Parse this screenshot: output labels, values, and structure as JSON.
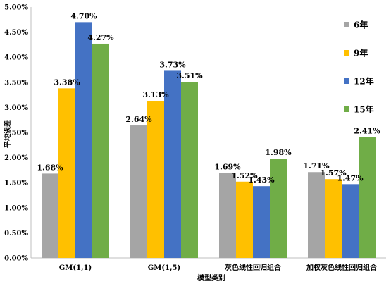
{
  "chart_data": {
    "type": "bar",
    "title": "",
    "xlabel": "模型类别",
    "ylabel": "平均误差",
    "categories": [
      "GM(1,1)",
      "GM(1,5)",
      "灰色线性回归组合",
      "加权灰色线性回归组合"
    ],
    "ylim": [
      0,
      0.05
    ],
    "y_ticks": [
      "0.00%",
      "0.50%",
      "1.00%",
      "1.50%",
      "2.00%",
      "2.50%",
      "3.00%",
      "3.50%",
      "4.00%",
      "4.50%",
      "5.00%"
    ],
    "grid": false,
    "legend_position": "right",
    "series": [
      {
        "name": "6年",
        "color": "#a5a5a5",
        "values": [
          0.0168,
          0.0264,
          0.0169,
          0.0171
        ],
        "labels": [
          "1.68%",
          "2.64%",
          "1.69%",
          "1.71%"
        ]
      },
      {
        "name": "9年",
        "color": "#ffc000",
        "values": [
          0.0338,
          0.0313,
          0.0152,
          0.0157
        ],
        "labels": [
          "3.38%",
          "3.13%",
          "1.52%",
          "1.57%"
        ]
      },
      {
        "name": "12年",
        "color": "#4472c4",
        "values": [
          0.047,
          0.0373,
          0.0143,
          0.0147
        ],
        "labels": [
          "4.70%",
          "3.73%",
          "1.43%",
          "1.47%"
        ]
      },
      {
        "name": "15年",
        "color": "#70ad47",
        "values": [
          0.0427,
          0.0351,
          0.0198,
          0.0241
        ],
        "labels": [
          "4.27%",
          "3.51%",
          "1.98%",
          "2.41%"
        ]
      }
    ]
  }
}
